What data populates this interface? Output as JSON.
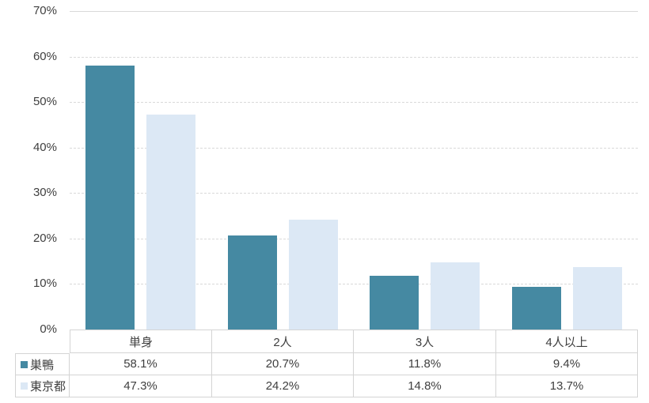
{
  "chart_data": {
    "type": "bar",
    "title": "",
    "categories": [
      "単身",
      "2人",
      "3人",
      "4人以上"
    ],
    "series": [
      {
        "name": "巣鴨",
        "color": "#4589A2",
        "values": [
          58.1,
          20.7,
          11.8,
          9.4
        ]
      },
      {
        "name": "東京都",
        "color": "#DCE8F5",
        "values": [
          47.3,
          24.2,
          14.8,
          13.7
        ]
      }
    ],
    "xlabel": "",
    "ylabel": "",
    "y_axis": {
      "min": 0,
      "max": 70,
      "step": 10,
      "tick_suffix": "%"
    },
    "grid": true,
    "legend_position": "table-left",
    "value_decimals": 1,
    "value_suffix": "%",
    "colors": {
      "gridline": "#d9d9d9",
      "table_border": "#d4d4d4",
      "text": "#3f3f3f",
      "background": "#ffffff"
    }
  }
}
